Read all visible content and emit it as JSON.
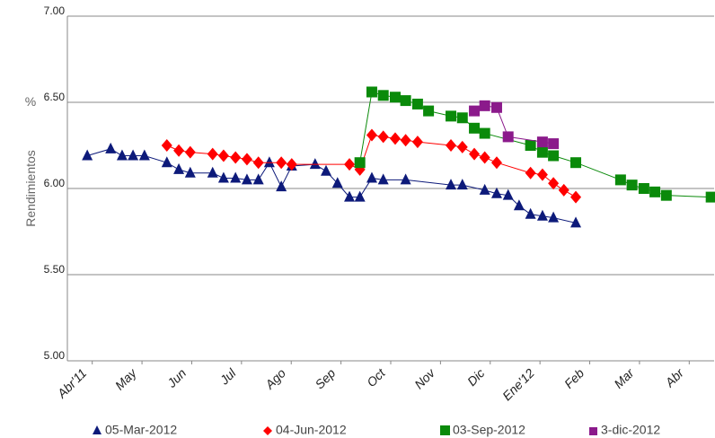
{
  "chart_data": {
    "type": "scatter",
    "y_axis_label": "Rendimientos",
    "y_unit": "%",
    "xlim": [
      0,
      13
    ],
    "ylim": [
      5.0,
      7.0
    ],
    "xticks": [
      {
        "value": 0.5,
        "label": "Abr'11"
      },
      {
        "value": 1.5,
        "label": "May"
      },
      {
        "value": 2.5,
        "label": "Jun"
      },
      {
        "value": 3.5,
        "label": "Jul"
      },
      {
        "value": 4.5,
        "label": "Ago"
      },
      {
        "value": 5.5,
        "label": "Sep"
      },
      {
        "value": 6.5,
        "label": "Oct"
      },
      {
        "value": 7.5,
        "label": "Nov"
      },
      {
        "value": 8.5,
        "label": "Dic"
      },
      {
        "value": 9.5,
        "label": "Ene'12"
      },
      {
        "value": 10.5,
        "label": "Feb"
      },
      {
        "value": 11.5,
        "label": "Mar"
      },
      {
        "value": 12.5,
        "label": "Abr"
      }
    ],
    "yticks": [
      {
        "value": 5.0,
        "label": "5.00"
      },
      {
        "value": 5.5,
        "label": "5.50"
      },
      {
        "value": 6.0,
        "label": "6.00"
      },
      {
        "value": 6.5,
        "label": "6.50"
      },
      {
        "value": 7.0,
        "label": "7.00"
      }
    ],
    "grid": true,
    "series": [
      {
        "name": "05-Mar-2012",
        "color": "#0d1a7a",
        "marker": "triangle",
        "x": [
          0.4,
          0.87,
          1.1,
          1.32,
          1.55,
          2.0,
          2.24,
          2.47,
          2.92,
          3.14,
          3.38,
          3.61,
          3.84,
          4.06,
          4.3,
          4.51,
          4.98,
          5.2,
          5.43,
          5.67,
          5.88,
          6.12,
          6.35,
          6.8,
          7.71,
          7.94,
          8.39,
          8.63,
          8.86,
          9.08,
          9.31,
          9.55,
          9.77,
          10.22
        ],
        "values": [
          6.19,
          6.23,
          6.19,
          6.19,
          6.19,
          6.15,
          6.11,
          6.09,
          6.09,
          6.06,
          6.06,
          6.05,
          6.05,
          6.15,
          6.01,
          6.13,
          6.14,
          6.1,
          6.03,
          5.95,
          5.95,
          6.06,
          6.05,
          6.05,
          6.02,
          6.02,
          5.99,
          5.97,
          5.96,
          5.9,
          5.85,
          5.84,
          5.83,
          5.8
        ]
      },
      {
        "name": "04-Jun-2012",
        "color": "#ff0000",
        "marker": "diamond",
        "x": [
          2.0,
          2.24,
          2.47,
          2.92,
          3.14,
          3.38,
          3.61,
          3.84,
          4.3,
          4.51,
          5.67,
          5.88,
          6.12,
          6.35,
          6.59,
          6.8,
          7.04,
          7.71,
          7.94,
          8.18,
          8.39,
          8.63,
          9.31,
          9.55,
          9.77,
          9.98,
          10.22
        ],
        "values": [
          6.25,
          6.22,
          6.21,
          6.2,
          6.19,
          6.18,
          6.17,
          6.15,
          6.15,
          6.14,
          6.14,
          6.11,
          6.31,
          6.3,
          6.29,
          6.28,
          6.27,
          6.25,
          6.24,
          6.2,
          6.18,
          6.15,
          6.09,
          6.08,
          6.03,
          5.99,
          5.95
        ]
      },
      {
        "name": "03-Sep-2012",
        "color": "#0a8a0a",
        "marker": "square",
        "x": [
          5.88,
          6.12,
          6.35,
          6.59,
          6.8,
          7.04,
          7.26,
          7.71,
          7.94,
          8.18,
          8.39,
          9.31,
          9.55,
          9.77,
          10.22,
          11.12,
          11.35,
          11.59,
          11.81,
          12.04,
          12.94
        ],
        "values": [
          6.15,
          6.56,
          6.54,
          6.53,
          6.51,
          6.49,
          6.45,
          6.42,
          6.41,
          6.35,
          6.32,
          6.25,
          6.21,
          6.19,
          6.15,
          6.05,
          6.02,
          6.0,
          5.98,
          5.96,
          5.95
        ]
      },
      {
        "name": "3-dic-2012",
        "color": "#8b1a8b",
        "marker": "square",
        "x": [
          8.18,
          8.39,
          8.63,
          8.86,
          9.55,
          9.77
        ],
        "values": [
          6.45,
          6.48,
          6.47,
          6.3,
          6.27,
          6.26
        ]
      }
    ]
  }
}
